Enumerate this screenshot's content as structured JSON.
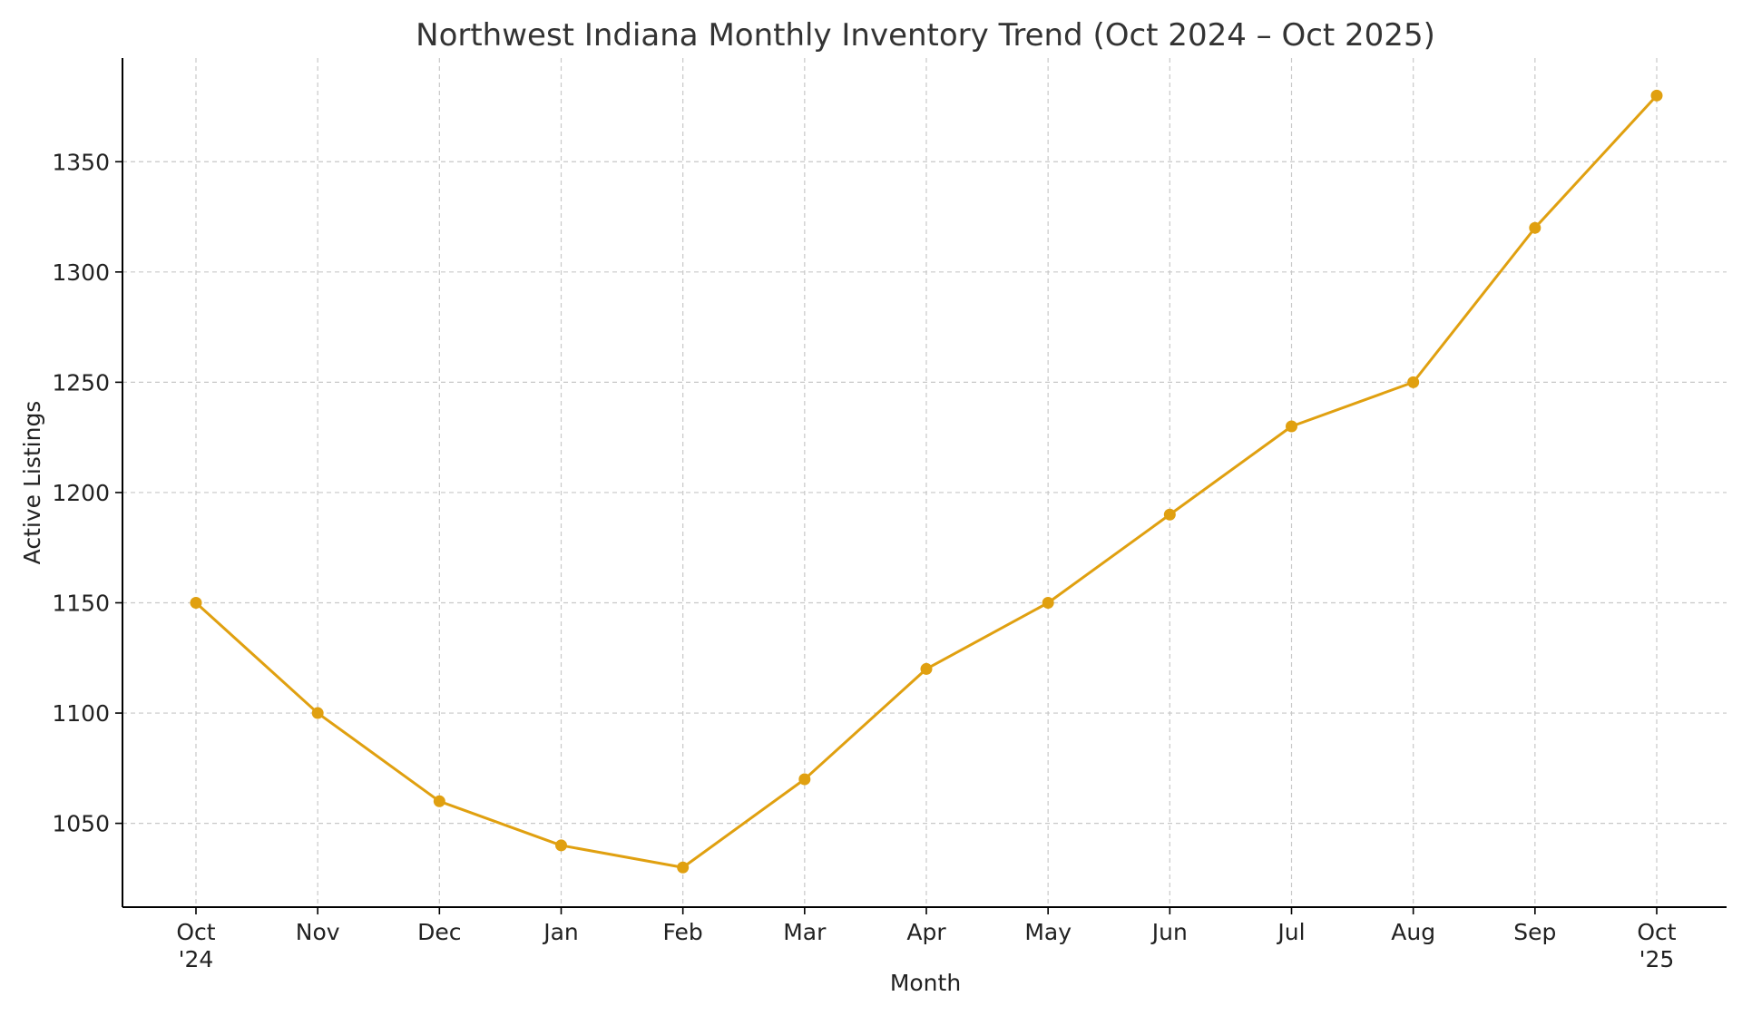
{
  "chart_data": {
    "type": "line",
    "title": "Northwest Indiana Monthly Inventory Trend (Oct 2024 – Oct 2025)",
    "xlabel": "Month",
    "ylabel": "Active Listings",
    "categories": [
      [
        "Oct",
        "'24"
      ],
      [
        "Nov"
      ],
      [
        "Dec"
      ],
      [
        "Jan"
      ],
      [
        "Feb"
      ],
      [
        "Mar"
      ],
      [
        "Apr"
      ],
      [
        "May"
      ],
      [
        "Jun"
      ],
      [
        "Jul"
      ],
      [
        "Aug"
      ],
      [
        "Sep"
      ],
      [
        "Oct",
        "'25"
      ]
    ],
    "series": [
      {
        "values": [
          1150,
          1100,
          1060,
          1040,
          1030,
          1070,
          1120,
          1150,
          1190,
          1230,
          1250,
          1320,
          1380
        ]
      }
    ],
    "yticks": [
      1050,
      1100,
      1150,
      1200,
      1250,
      1300,
      1350
    ],
    "ylim": [
      1012,
      1397
    ],
    "grid": true,
    "line_color": "#E0A010"
  }
}
